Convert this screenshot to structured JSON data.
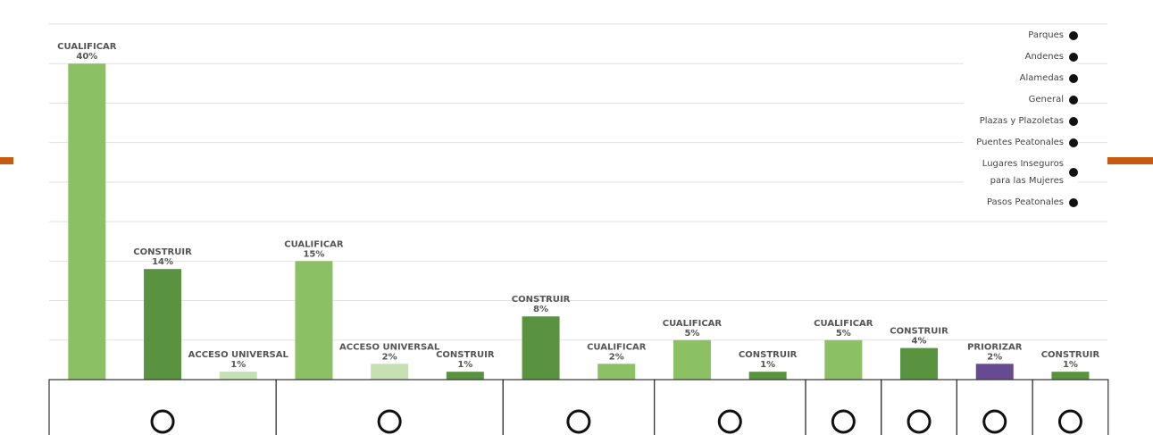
{
  "chart_data": {
    "type": "bar",
    "ylim": [
      0,
      45
    ],
    "grid_lines": [
      0,
      5,
      10,
      15,
      20,
      25,
      30,
      35,
      40,
      45
    ],
    "groups": [
      {
        "name": "Parques",
        "bars": [
          {
            "label": "CUALIFICAR",
            "value": 40,
            "value_label": "40%",
            "color": "#8bc064"
          },
          {
            "label": "CONSTRUIR",
            "value": 14,
            "value_label": "14%",
            "color": "#5a9340"
          },
          {
            "label": "ACCESO UNIVERSAL",
            "value": 1,
            "value_label": "1%",
            "color": "#c6e0b4"
          }
        ]
      },
      {
        "name": "Andenes",
        "bars": [
          {
            "label": "CUALIFICAR",
            "value": 15,
            "value_label": "15%",
            "color": "#8bc064"
          },
          {
            "label": "ACCESO UNIVERSAL",
            "value": 2,
            "value_label": "2%",
            "color": "#c6e0b4"
          },
          {
            "label": "CONSTRUIR",
            "value": 1,
            "value_label": "1%",
            "color": "#5a9340"
          }
        ]
      },
      {
        "name": "Alamedas",
        "bars": [
          {
            "label": "CONSTRUIR",
            "value": 8,
            "value_label": "8%",
            "color": "#5a9340"
          },
          {
            "label": "CUALIFICAR",
            "value": 2,
            "value_label": "2%",
            "color": "#8bc064"
          }
        ]
      },
      {
        "name": "General",
        "bars": [
          {
            "label": "CUALIFICAR",
            "value": 5,
            "value_label": "5%",
            "color": "#8bc064"
          },
          {
            "label": "CONSTRUIR",
            "value": 1,
            "value_label": "1%",
            "color": "#5a9340"
          }
        ]
      },
      {
        "name": "Plazas y Plazoletas",
        "bars": [
          {
            "label": "CUALIFICAR",
            "value": 5,
            "value_label": "5%",
            "color": "#8bc064"
          }
        ]
      },
      {
        "name": "Puentes Peatonales",
        "bars": [
          {
            "label": "CONSTRUIR",
            "value": 4,
            "value_label": "4%",
            "color": "#5a9340"
          }
        ]
      },
      {
        "name": "Lugares Inseguros para las Mujeres",
        "bars": [
          {
            "label": "PRIORIZAR",
            "value": 2,
            "value_label": "2%",
            "color": "#674a91"
          }
        ]
      },
      {
        "name": "Pasos Peatonales",
        "bars": [
          {
            "label": "CONSTRUIR",
            "value": 1,
            "value_label": "1%",
            "color": "#5a9340"
          }
        ]
      }
    ]
  }
}
